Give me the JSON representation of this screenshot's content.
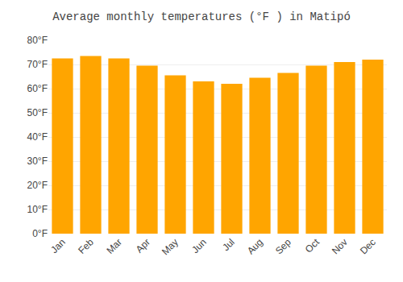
{
  "chart_data": {
    "type": "bar",
    "title": "Average monthly temperatures (°F ) in Matipó",
    "categories": [
      "Jan",
      "Feb",
      "Mar",
      "Apr",
      "May",
      "Jun",
      "Jul",
      "Aug",
      "Sep",
      "Oct",
      "Nov",
      "Dec"
    ],
    "values": [
      72.5,
      73.5,
      72.5,
      69.5,
      65.5,
      63.0,
      62.0,
      64.5,
      66.5,
      69.5,
      71.0,
      72.0
    ],
    "color": "#FFA500",
    "ylim": [
      0,
      80
    ],
    "yticks": [
      {
        "value": 0,
        "label": "0°F"
      },
      {
        "value": 10,
        "label": "10°F"
      },
      {
        "value": 20,
        "label": "20°F"
      },
      {
        "value": 30,
        "label": "30°F"
      },
      {
        "value": 40,
        "label": "40°F"
      },
      {
        "value": 50,
        "label": "50°F"
      },
      {
        "value": 60,
        "label": "60°F"
      },
      {
        "value": 70,
        "label": "70°F"
      },
      {
        "value": 80,
        "label": "80°F"
      }
    ],
    "grid": true
  }
}
